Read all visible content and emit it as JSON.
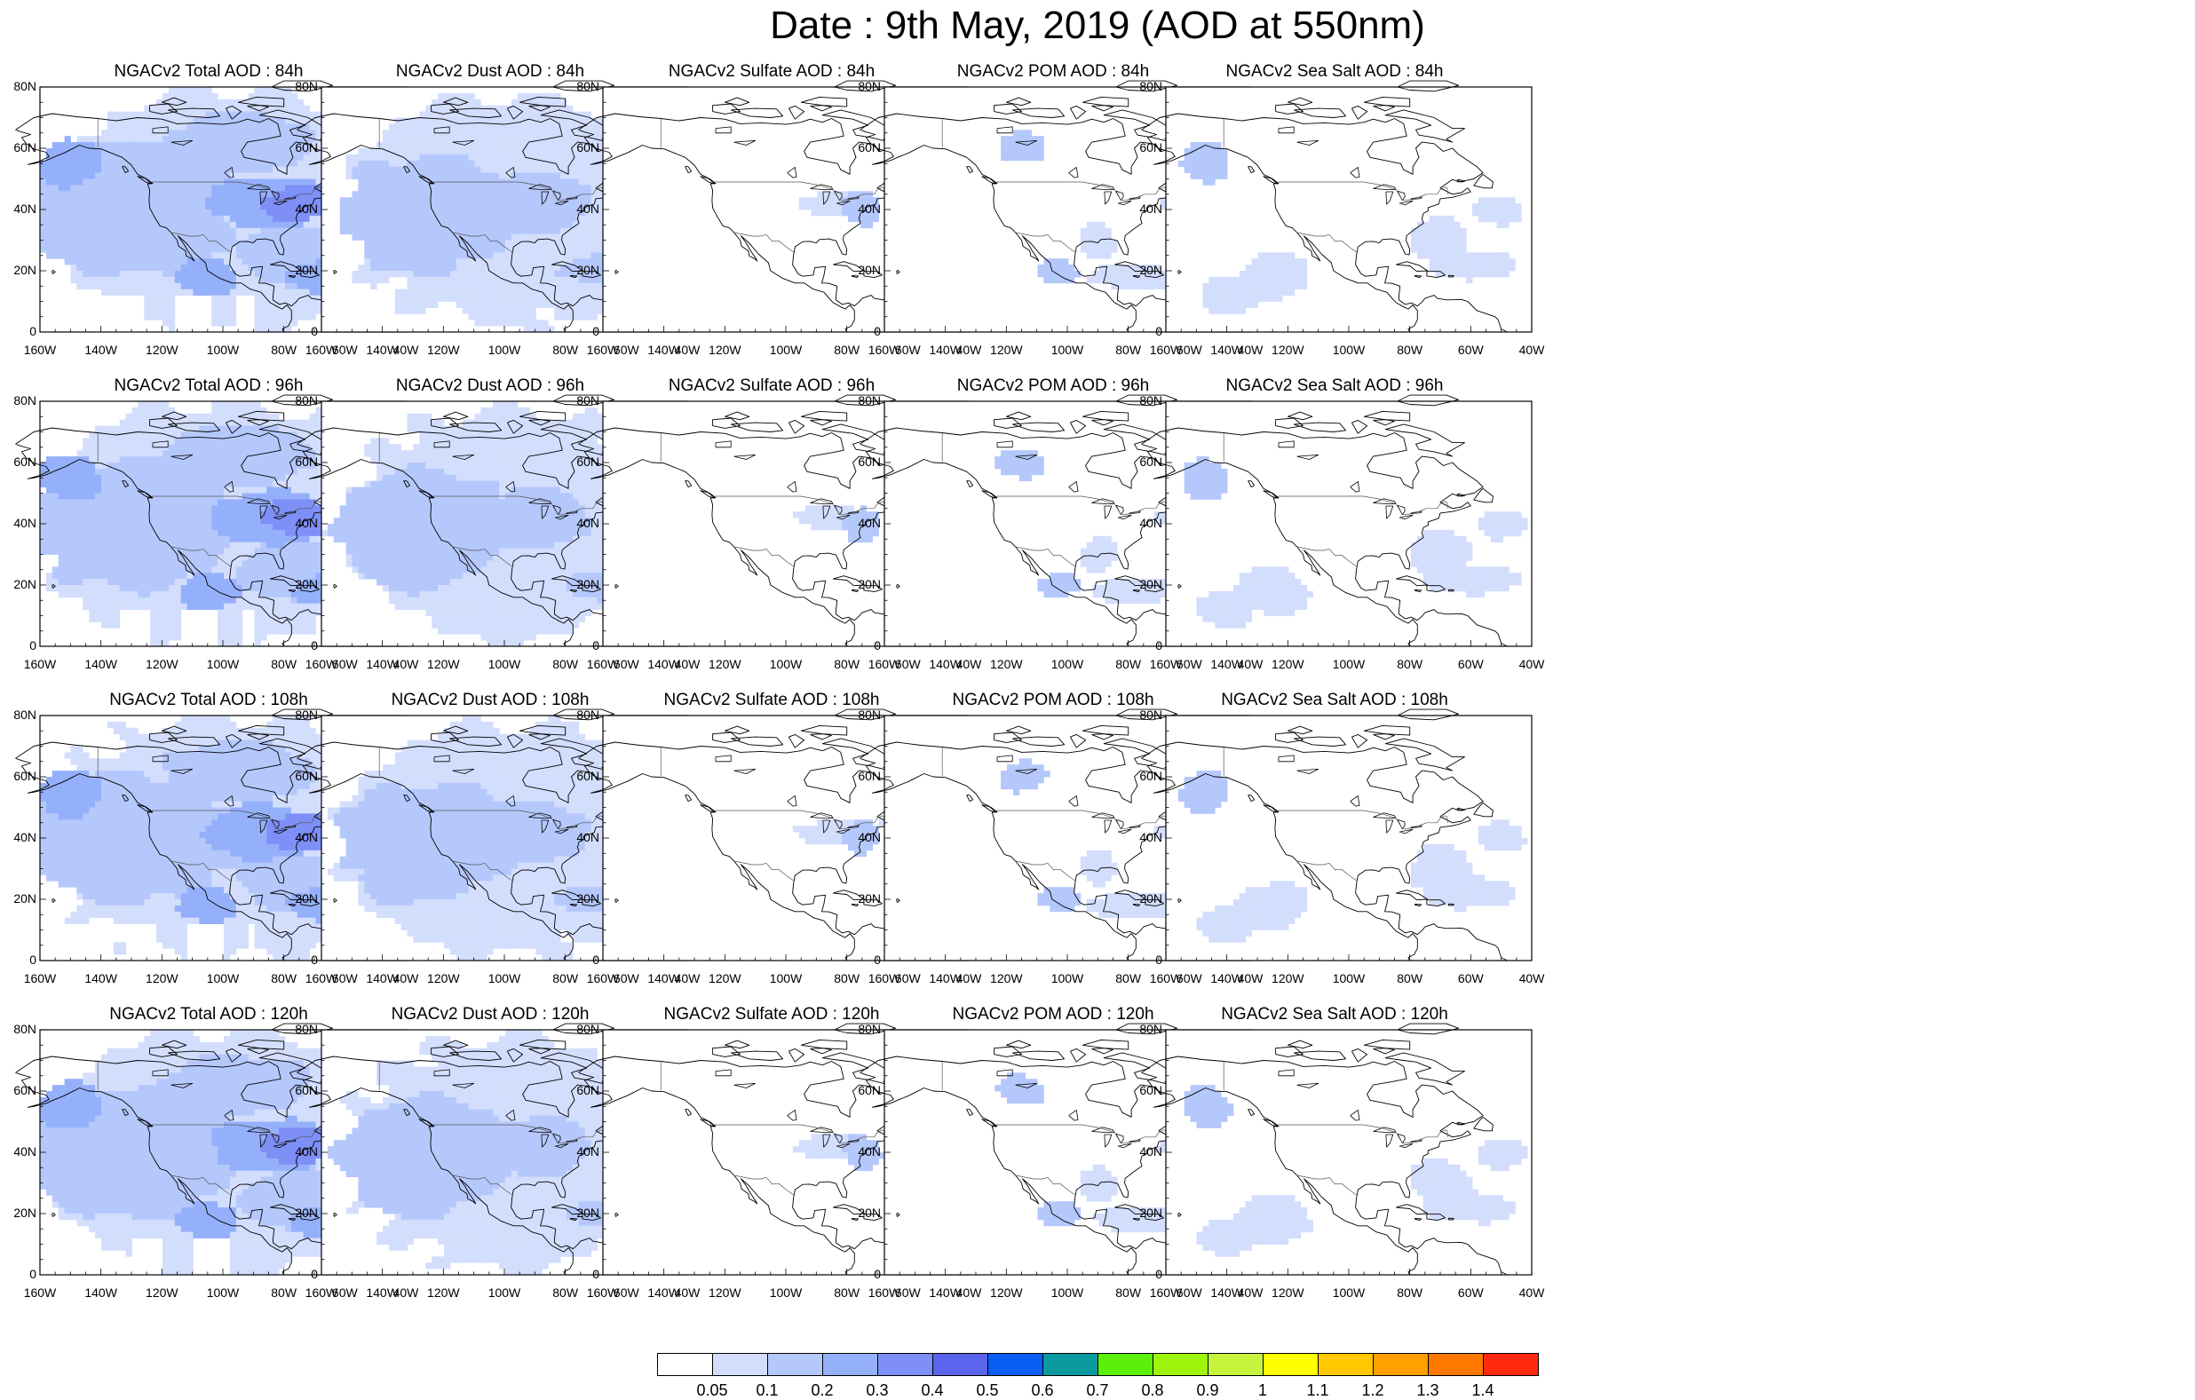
{
  "title": "Date : 9th May, 2019 (AOD at 550nm)",
  "map_extent": {
    "lon": [
      -160,
      -40
    ],
    "lat": [
      0,
      80
    ]
  },
  "lat_ticks": [
    "0",
    "20N",
    "40N",
    "60N",
    "80N"
  ],
  "lon_ticks": [
    "160W",
    "140W",
    "120W",
    "100W",
    "80W",
    "60W",
    "40W"
  ],
  "colorbar": {
    "colors": [
      "#ffffff",
      "#d3defd",
      "#b5c8fc",
      "#95b0fb",
      "#7e8ff7",
      "#5a64ec",
      "#0a5ef4",
      "#0a9aa0",
      "#5af00a",
      "#9ef40a",
      "#c6f43c",
      "#ffff00",
      "#ffc800",
      "#ffa000",
      "#ff7800",
      "#ff2a10"
    ],
    "labels": [
      "0.05",
      "0.1",
      "0.2",
      "0.3",
      "0.4",
      "0.5",
      "0.6",
      "0.7",
      "0.8",
      "0.9",
      "1",
      "1.1",
      "1.2",
      "1.3",
      "1.4"
    ]
  },
  "panels": [
    {
      "title": "NGACv2 Total AOD : 84h",
      "species": "total"
    },
    {
      "title": "NGACv2 Dust AOD : 84h",
      "species": "dust"
    },
    {
      "title": "NGACv2 Sulfate AOD : 84h",
      "species": "sulfate"
    },
    {
      "title": "NGACv2 POM AOD : 84h",
      "species": "pom"
    },
    {
      "title": "NGACv2 Sea Salt AOD : 84h",
      "species": "seasalt"
    },
    {
      "title": "NGACv2 Total AOD : 96h",
      "species": "total"
    },
    {
      "title": "NGACv2 Dust AOD : 96h",
      "species": "dust"
    },
    {
      "title": "NGACv2 Sulfate AOD : 96h",
      "species": "sulfate"
    },
    {
      "title": "NGACv2 POM AOD : 96h",
      "species": "pom"
    },
    {
      "title": "NGACv2 Sea Salt AOD : 96h",
      "species": "seasalt"
    },
    {
      "title": "NGACv2 Total AOD : 108h",
      "species": "total"
    },
    {
      "title": "NGACv2 Dust AOD : 108h",
      "species": "dust"
    },
    {
      "title": "NGACv2 Sulfate AOD : 108h",
      "species": "sulfate"
    },
    {
      "title": "NGACv2 POM AOD : 108h",
      "species": "pom"
    },
    {
      "title": "NGACv2 Sea Salt AOD : 108h",
      "species": "seasalt"
    },
    {
      "title": "NGACv2 Total AOD : 120h",
      "species": "total"
    },
    {
      "title": "NGACv2 Dust AOD : 120h",
      "species": "dust"
    },
    {
      "title": "NGACv2 Sulfate AOD : 120h",
      "species": "sulfate"
    },
    {
      "title": "NGACv2 POM AOD : 120h",
      "species": "pom"
    },
    {
      "title": "NGACv2 Sea Salt  AOD : 120h",
      "species": "seasalt"
    }
  ]
}
